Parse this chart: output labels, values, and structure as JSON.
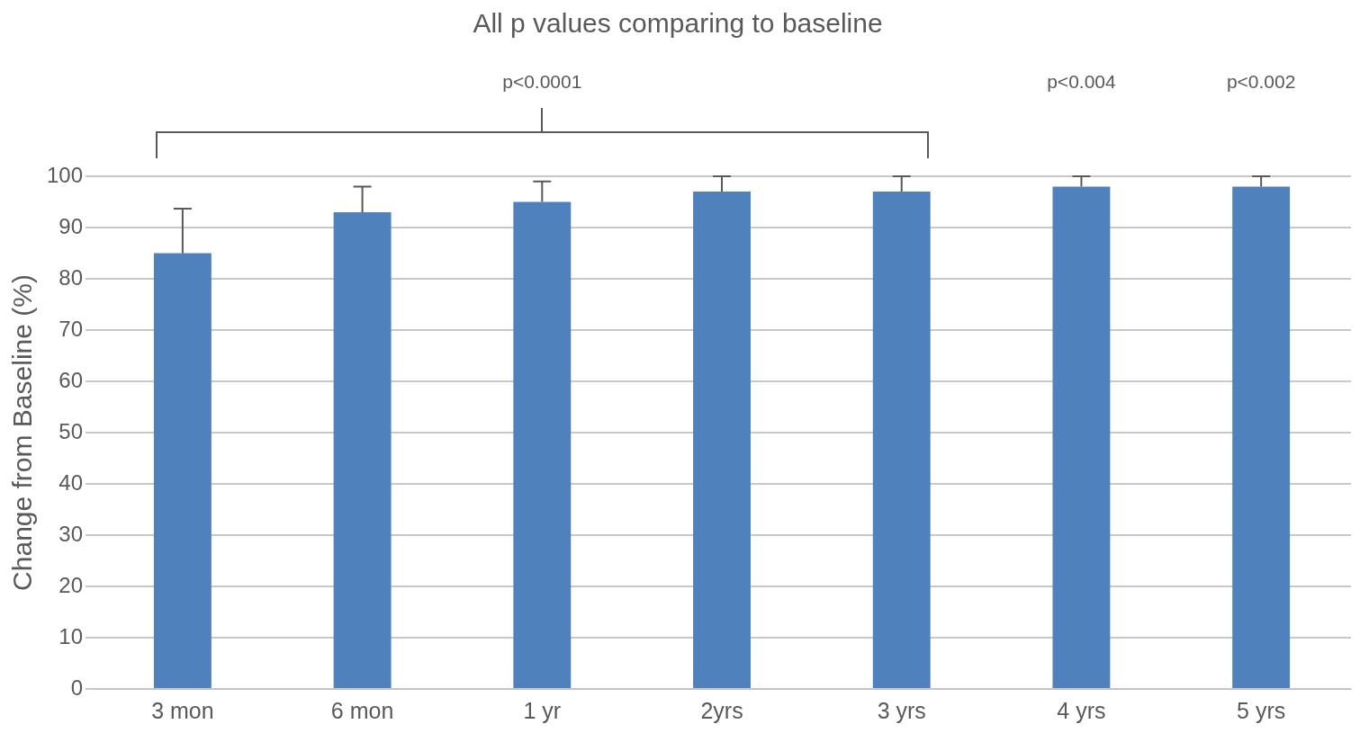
{
  "chart_data": {
    "type": "bar",
    "title": "All p values comparing to baseline",
    "ylabel": "Change from Baseline (%)",
    "categories": [
      "3 mon",
      "6 mon",
      "1 yr",
      "2yrs",
      "3 yrs",
      "4 yrs",
      "5 yrs"
    ],
    "values": [
      85,
      93,
      95,
      97,
      97,
      98,
      98
    ],
    "errors": [
      [
        85,
        93.7
      ],
      [
        93,
        98
      ],
      [
        95,
        99
      ],
      [
        97,
        100
      ],
      [
        97,
        100
      ],
      [
        98,
        100
      ],
      [
        98,
        100
      ]
    ],
    "color": "#4f81bd",
    "ylim": [
      0,
      100
    ],
    "yticks": [
      0,
      10,
      20,
      30,
      40,
      50,
      60,
      70,
      80,
      90,
      100
    ],
    "grid": "y",
    "legend": false,
    "annotations": [
      "p<0.0001",
      "p<0.004",
      "p<0.002"
    ]
  }
}
